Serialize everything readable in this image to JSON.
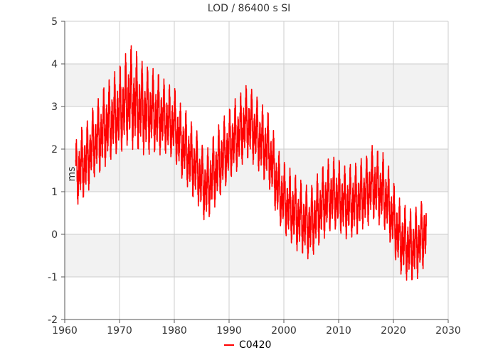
{
  "chart_data": {
    "type": "line",
    "title": "LOD / 86400 s SI",
    "xlabel": "",
    "ylabel": "ms",
    "xlim": [
      1960,
      2030
    ],
    "ylim": [
      -2,
      5
    ],
    "xticks": [
      "1960",
      "1970",
      "1980",
      "1990",
      "2000",
      "2010",
      "2020",
      "2030"
    ],
    "yticks": [
      "5",
      "4",
      "3",
      "2",
      "1",
      "0",
      "-1",
      "-2"
    ],
    "grid": true,
    "legend_position": "bottom-center",
    "colors": {
      "series": "#ff0000",
      "band": "#f2f2f2",
      "grid": "#cccccc"
    },
    "series": [
      {
        "name": "C0420",
        "approximate_trend": {
          "x": [
            1962.0,
            1963.0,
            1964.0,
            1965.0,
            1966.0,
            1967.0,
            1968.0,
            1969.0,
            1970.0,
            1971.0,
            1972.0,
            1973.0,
            1974.0,
            1975.0,
            1976.0,
            1977.0,
            1978.0,
            1979.0,
            1980.0,
            1981.0,
            1982.0,
            1983.0,
            1984.0,
            1985.0,
            1986.0,
            1987.0,
            1988.0,
            1989.0,
            1990.0,
            1991.0,
            1992.0,
            1993.0,
            1994.0,
            1995.0,
            1996.0,
            1997.0,
            1998.0,
            1999.0,
            2000.0,
            2001.0,
            2002.0,
            2003.0,
            2004.0,
            2005.0,
            2006.0,
            2007.0,
            2008.0,
            2009.0,
            2010.0,
            2011.0,
            2012.0,
            2013.0,
            2014.0,
            2015.0,
            2016.0,
            2017.0,
            2018.0,
            2019.0,
            2020.0,
            2021.0,
            2022.0,
            2023.0,
            2024.0,
            2025.0,
            2026.0
          ],
          "y": [
            1.4,
            1.6,
            1.8,
            2.1,
            2.3,
            2.4,
            2.6,
            2.7,
            2.8,
            3.0,
            3.2,
            3.1,
            3.0,
            2.9,
            2.9,
            2.8,
            2.7,
            2.6,
            2.5,
            2.2,
            2.0,
            1.8,
            1.6,
            1.3,
            1.1,
            1.4,
            1.6,
            1.8,
            2.0,
            2.2,
            2.4,
            2.6,
            2.6,
            2.4,
            2.2,
            2.0,
            1.6,
            1.0,
            0.8,
            0.6,
            0.5,
            0.4,
            0.3,
            0.3,
            0.5,
            0.7,
            0.8,
            0.9,
            0.8,
            0.7,
            0.7,
            0.8,
            0.9,
            1.0,
            1.2,
            1.1,
            1.0,
            0.7,
            0.3,
            -0.1,
            -0.2,
            -0.3,
            -0.2,
            -0.1,
            0.2
          ],
          "amplitude": [
            0.7,
            0.8,
            0.8,
            0.8,
            0.8,
            0.9,
            0.9,
            0.9,
            1.0,
            1.0,
            1.1,
            1.1,
            1.0,
            1.0,
            0.9,
            0.9,
            0.8,
            0.8,
            0.8,
            0.8,
            0.8,
            0.8,
            0.8,
            0.8,
            0.8,
            0.8,
            0.8,
            0.8,
            0.8,
            0.8,
            0.8,
            0.8,
            0.8,
            0.8,
            0.8,
            0.8,
            0.8,
            0.8,
            0.8,
            0.8,
            0.8,
            0.8,
            0.8,
            0.8,
            0.8,
            0.8,
            0.8,
            0.8,
            0.8,
            0.8,
            0.8,
            0.8,
            0.8,
            0.8,
            0.8,
            0.8,
            0.8,
            0.8,
            0.8,
            0.8,
            0.8,
            0.8,
            0.8,
            0.8,
            0.8
          ]
        }
      }
    ]
  }
}
